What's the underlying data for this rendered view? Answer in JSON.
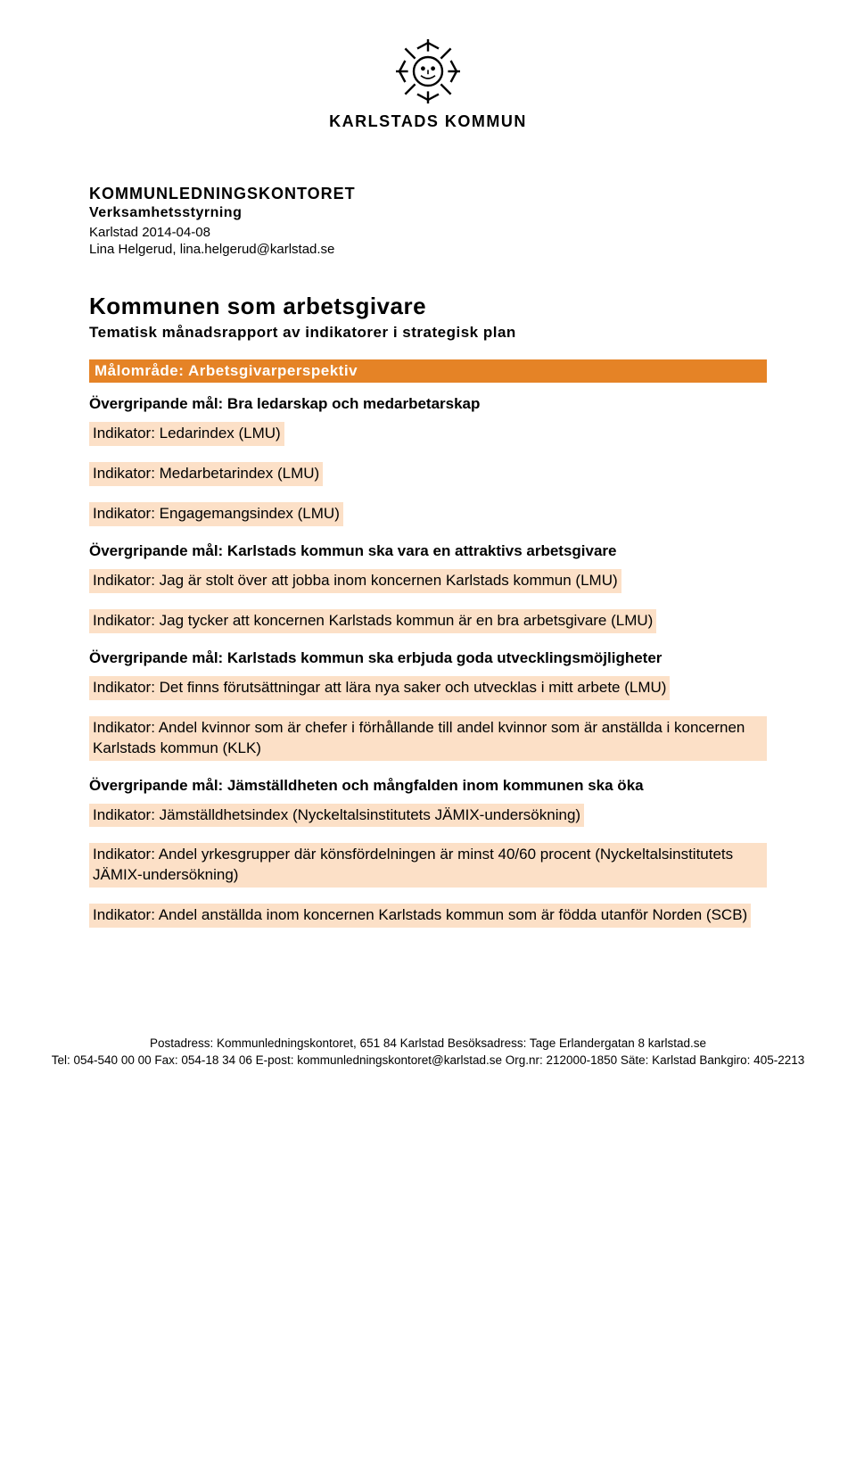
{
  "colors": {
    "area_bar_bg": "#e58326",
    "area_bar_text": "#ffffff",
    "indicator_bg": "#fce0c7",
    "text": "#000000",
    "page_bg": "#ffffff"
  },
  "logo": {
    "text": "KARLSTADS KOMMUN"
  },
  "header": {
    "department": "KOMMUNLEDNINGSKONTORET",
    "subdepartment": "Verksamhetsstyrning",
    "date_line": "Karlstad  2014-04-08",
    "author_line": "Lina Helgerud, lina.helgerud@karlstad.se"
  },
  "title": "Kommunen som arbetsgivare",
  "subtitle": "Tematisk månadsrapport av indikatorer i strategisk plan",
  "area_label": "Målområde: Arbetsgivarperspektiv",
  "sections": [
    {
      "goal": "Övergripande mål: Bra ledarskap och medarbetarskap",
      "indicators": [
        "Indikator: Ledarindex (LMU)",
        "Indikator: Medarbetarindex (LMU)",
        "Indikator: Engagemangsindex (LMU)"
      ]
    },
    {
      "goal": "Övergripande mål: Karlstads kommun ska vara en attraktivs arbetsgivare",
      "indicators": [
        "Indikator: Jag är stolt över att jobba inom koncernen Karlstads kommun (LMU)",
        "Indikator: Jag tycker att koncernen Karlstads kommun är en bra arbetsgivare (LMU)"
      ]
    },
    {
      "goal": "Övergripande mål: Karlstads kommun ska erbjuda goda utvecklingsmöjligheter",
      "indicators": [
        "Indikator: Det finns förutsättningar att lära nya saker och utvecklas i mitt arbete (LMU)",
        "Indikator: Andel kvinnor som är chefer i förhållande till andel kvinnor som är anställda i koncernen Karlstads kommun (KLK)"
      ]
    },
    {
      "goal": "Övergripande mål: Jämställdheten och mångfalden inom kommunen ska öka",
      "indicators": [
        "Indikator: Jämställdhetsindex (Nyckeltalsinstitutets JÄMIX-undersökning)",
        "Indikator: Andel yrkesgrupper där könsfördelningen är minst 40/60 procent (Nyckeltalsinstitutets JÄMIX-undersökning)",
        "Indikator: Andel anställda inom koncernen Karlstads kommun som är födda utanför Norden (SCB)"
      ]
    }
  ],
  "footer": {
    "line1": "Postadress: Kommunledningskontoret, 651 84 Karlstad  Besöksadress: Tage Erlandergatan 8  karlstad.se",
    "line2": "Tel: 054-540 00 00  Fax: 054-18 34 06  E-post: kommunledningskontoret@karlstad.se  Org.nr: 212000-1850  Säte: Karlstad  Bankgiro: 405-2213"
  }
}
